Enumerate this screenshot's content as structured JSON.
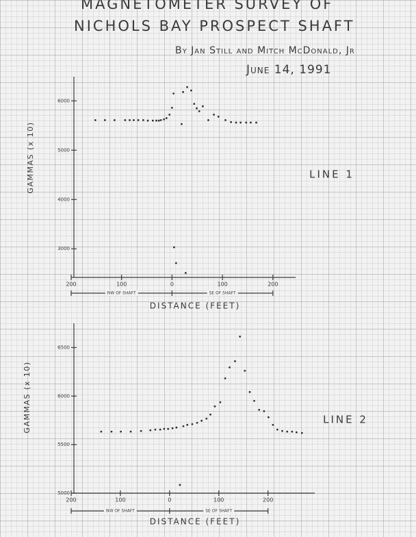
{
  "header": {
    "title_lines": [
      "MAGNETOMETER SURVEY OF",
      "NICHOLS BAY PROSPECT SHAFT"
    ],
    "byline": "By Jan Still and Mitch McDonald, Jr",
    "date": "June 14, 1991"
  },
  "chart_data": [
    {
      "type": "scatter",
      "title": "LINE 1",
      "xlabel": "DISTANCE (FEET)",
      "ylabel": "GAMMAS (x 10)",
      "annotations": [
        "NW OF SHAFT",
        "SE OF SHAFT"
      ],
      "color": "#333333",
      "xlim": [
        -200,
        245
      ],
      "ylim": [
        2420,
        6490
      ],
      "xticks": [
        {
          "value": -200,
          "label": "200"
        },
        {
          "value": -100,
          "label": "100"
        },
        0,
        100,
        200
      ],
      "yticks": [
        3000,
        4000,
        5000,
        6000
      ],
      "x": [
        -152,
        -133,
        -114,
        -93,
        -84,
        -76,
        -67,
        -57,
        -48,
        -38,
        -31,
        -26,
        -22,
        -16,
        -11,
        -5,
        0,
        3,
        19,
        22,
        30,
        38,
        44,
        49,
        54,
        61,
        72,
        83,
        92,
        106,
        117,
        127,
        136,
        147,
        156,
        167,
        4,
        8,
        27
      ],
      "values": [
        5610,
        5610,
        5610,
        5610,
        5610,
        5610,
        5610,
        5610,
        5600,
        5600,
        5600,
        5600,
        5610,
        5625,
        5650,
        5720,
        5860,
        6150,
        5530,
        6180,
        6280,
        6210,
        5940,
        5850,
        5790,
        5890,
        5610,
        5720,
        5680,
        5610,
        5570,
        5560,
        5560,
        5560,
        5560,
        5560,
        3030,
        2710,
        2510
      ]
    },
    {
      "type": "scatter",
      "title": "LINE 2",
      "xlabel": "DISTANCE (FEET)",
      "ylabel": "GAMMAS (x 10)",
      "annotations": [
        "NW OF SHAFT",
        "SE OF SHAFT"
      ],
      "color": "#333333",
      "xlim": [
        -200,
        295
      ],
      "ylim": [
        5000,
        6750
      ],
      "xticks": [
        {
          "value": -200,
          "label": "200"
        },
        {
          "value": -100,
          "label": "100"
        },
        0,
        100,
        200
      ],
      "yticks": [
        5000,
        5500,
        6000,
        6500
      ],
      "x": [
        -139,
        -118,
        -99,
        -79,
        -58,
        -39,
        -29,
        -19,
        -11,
        -3,
        6,
        14,
        21,
        28,
        36,
        46,
        56,
        65,
        75,
        83,
        92,
        103,
        113,
        122,
        133,
        143,
        153,
        163,
        172,
        182,
        192,
        201,
        210,
        219,
        229,
        239,
        249,
        258,
        269
      ],
      "values": [
        5634,
        5634,
        5634,
        5634,
        5640,
        5648,
        5655,
        5655,
        5662,
        5662,
        5669,
        5676,
        5085,
        5690,
        5704,
        5711,
        5725,
        5746,
        5768,
        5810,
        5894,
        5937,
        6183,
        6296,
        6359,
        6613,
        6261,
        6042,
        5951,
        5859,
        5845,
        5782,
        5704,
        5655,
        5641,
        5634,
        5634,
        5627,
        5620
      ]
    }
  ]
}
